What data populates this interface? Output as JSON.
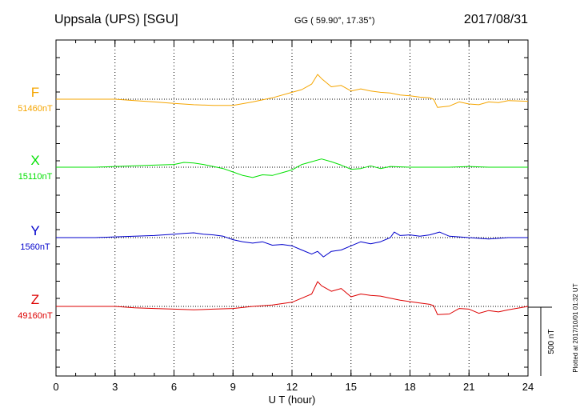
{
  "header": {
    "station": "Uppsala (UPS)  [SGU]",
    "coords": "GG ( 59.90°,  17.35°)",
    "date": "2017/08/31"
  },
  "side_note": "Plotted at 2017/10/01 01:32 UT",
  "scale_bar": {
    "label": "500 nT",
    "value_nT": 500
  },
  "colors": {
    "F": "#f5a500",
    "X": "#00e000",
    "Y": "#0000cc",
    "Z": "#dd0000"
  },
  "chart_data": {
    "type": "line",
    "xlabel": "U T (hour)",
    "xlim": [
      0,
      24
    ],
    "xticks": [
      "0",
      "3",
      "6",
      "9",
      "12",
      "15",
      "18",
      "21",
      "24"
    ],
    "units": "nT",
    "series": [
      {
        "name": "F",
        "baseline_label": "51460nT",
        "baseline_nT": 51460,
        "hours": [
          0,
          1,
          2,
          3,
          4,
          5,
          6,
          7,
          8,
          9,
          10,
          11,
          12,
          12.5,
          13,
          13.3,
          13.5,
          14,
          14.5,
          15,
          15.5,
          16,
          16.5,
          17,
          17.5,
          18,
          18.5,
          19,
          19.2,
          19.4,
          20,
          20.5,
          21,
          21.5,
          22,
          22.5,
          23,
          24
        ],
        "values_nT": [
          0,
          0,
          0,
          0,
          -10,
          -20,
          -30,
          -40,
          -45,
          -45,
          -20,
          10,
          50,
          70,
          110,
          180,
          150,
          90,
          100,
          60,
          75,
          60,
          50,
          45,
          30,
          25,
          15,
          10,
          0,
          -60,
          -50,
          -20,
          -35,
          -40,
          -20,
          -25,
          -10,
          -15
        ]
      },
      {
        "name": "X",
        "baseline_label": "15110nT",
        "baseline_nT": 15110,
        "hours": [
          0,
          1,
          2,
          3,
          4,
          5,
          6,
          6.5,
          7,
          7.5,
          8,
          8.5,
          9,
          9.5,
          10,
          10.5,
          11,
          11.5,
          12,
          12.5,
          13,
          13.5,
          14,
          14.5,
          15,
          15.5,
          16,
          16.5,
          17,
          18,
          19,
          20,
          21,
          22,
          23,
          24
        ],
        "values_nT": [
          0,
          0,
          0,
          5,
          10,
          15,
          20,
          35,
          30,
          20,
          5,
          -10,
          -35,
          -60,
          -75,
          -55,
          -60,
          -40,
          -20,
          20,
          40,
          60,
          40,
          15,
          -15,
          -10,
          10,
          -10,
          5,
          0,
          0,
          0,
          5,
          0,
          0,
          0
        ]
      },
      {
        "name": "Y",
        "baseline_label": "1560nT",
        "baseline_nT": 1560,
        "hours": [
          0,
          1,
          2,
          3,
          4,
          5,
          6,
          6.5,
          7,
          7.5,
          8,
          8.5,
          9,
          9.5,
          10,
          10.5,
          11,
          11.5,
          12,
          12.5,
          13,
          13.3,
          13.6,
          14,
          14.5,
          15,
          15.5,
          16,
          16.5,
          17,
          17.2,
          17.5,
          18,
          18.5,
          19,
          19.5,
          20,
          21,
          22,
          23,
          24
        ],
        "values_nT": [
          0,
          0,
          0,
          5,
          10,
          15,
          25,
          30,
          35,
          25,
          20,
          10,
          -15,
          -30,
          -40,
          -30,
          -55,
          -50,
          -60,
          -90,
          -120,
          -100,
          -140,
          -100,
          -90,
          -60,
          -30,
          -45,
          -30,
          0,
          40,
          15,
          20,
          10,
          20,
          40,
          10,
          0,
          -10,
          0,
          0
        ]
      },
      {
        "name": "Z",
        "baseline_label": "49160nT",
        "baseline_nT": 49160,
        "hours": [
          0,
          1,
          2,
          3,
          4,
          5,
          6,
          7,
          8,
          9,
          10,
          11,
          12,
          12.5,
          13,
          13.3,
          13.5,
          14,
          14.5,
          15,
          15.5,
          16,
          16.5,
          17,
          17.5,
          18,
          18.5,
          19,
          19.2,
          19.4,
          20,
          20.5,
          21,
          21.5,
          22,
          22.5,
          23,
          24
        ],
        "values_nT": [
          0,
          0,
          0,
          0,
          -10,
          -15,
          -20,
          -25,
          -20,
          -15,
          0,
          10,
          30,
          60,
          90,
          180,
          150,
          110,
          130,
          70,
          90,
          80,
          75,
          60,
          45,
          35,
          25,
          15,
          5,
          -60,
          -55,
          -15,
          -20,
          -50,
          -30,
          -40,
          -25,
          0
        ]
      }
    ]
  }
}
